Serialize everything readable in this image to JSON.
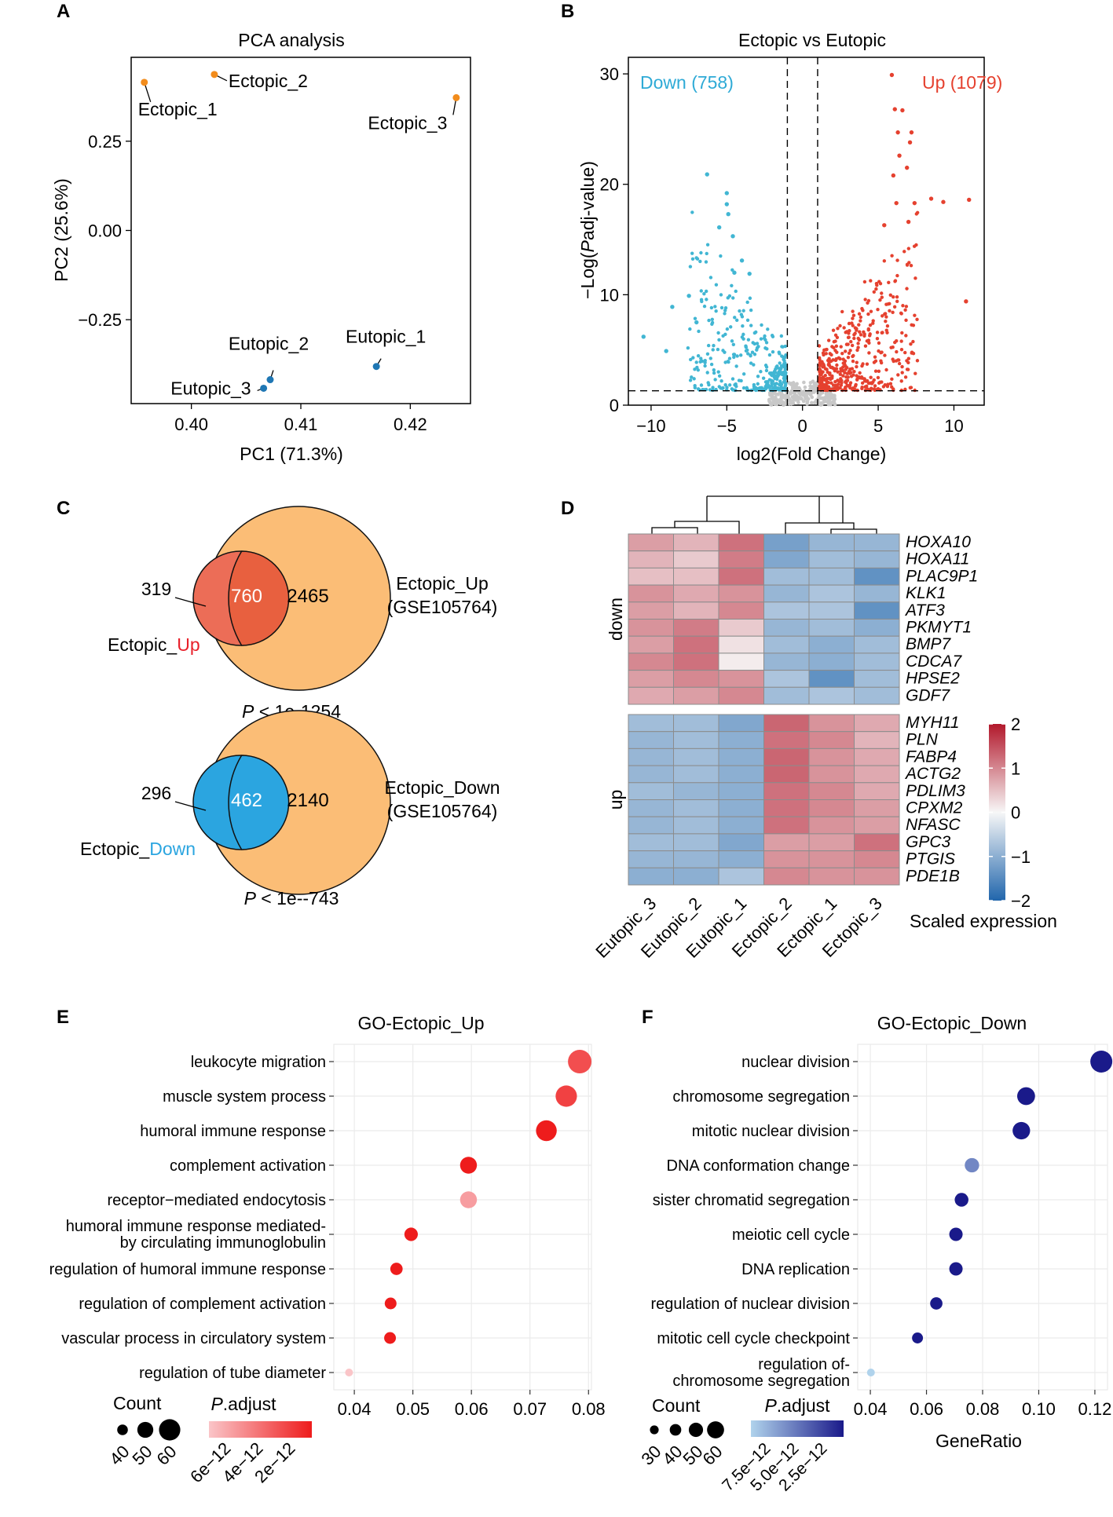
{
  "panels": {
    "A": "A",
    "B": "B",
    "C": "C",
    "D": "D",
    "E": "E",
    "F": "F"
  },
  "chart_data": [
    {
      "panel": "A",
      "type": "scatter",
      "title": "PCA analysis",
      "xlabel": "PC1 (71.3%)",
      "ylabel": "PC2 (25.6%)",
      "xlim": [
        0.3945,
        0.4255
      ],
      "ylim": [
        -0.485,
        0.485
      ],
      "xticks": [
        0.4,
        0.41,
        0.42
      ],
      "xtick_labels": [
        "0.40",
        "0.41",
        "0.42"
      ],
      "yticks": [
        0.25,
        0.0,
        -0.25
      ],
      "ytick_labels": [
        "0.25",
        "0.00",
        "−0.25"
      ],
      "points": [
        {
          "label": "Ectopic_1",
          "group": "Ectopic",
          "x": 0.3957,
          "y": 0.415
        },
        {
          "label": "Ectopic_2",
          "group": "Ectopic",
          "x": 0.4021,
          "y": 0.437
        },
        {
          "label": "Ectopic_3",
          "group": "Ectopic",
          "x": 0.4242,
          "y": 0.372
        },
        {
          "label": "Eutopic_1",
          "group": "Eutopic",
          "x": 0.4169,
          "y": -0.381
        },
        {
          "label": "Eutopic_2",
          "group": "Eutopic",
          "x": 0.4072,
          "y": -0.418
        },
        {
          "label": "Eutopic_3",
          "group": "Eutopic",
          "x": 0.4066,
          "y": -0.442
        }
      ],
      "colors": {
        "Ectopic": "#f28c1c",
        "Eutopic": "#1f77b4"
      }
    },
    {
      "panel": "B",
      "type": "scatter",
      "title": "Ectopic vs Eutopic",
      "xlabel": "log2(Fold Change)",
      "ylabel_prefix": "−Log(",
      "ylabel_italic": "P",
      "ylabel_suffix": "adj-value)",
      "xlim": [
        -11.5,
        12.0
      ],
      "ylim": [
        0,
        31.5
      ],
      "xticks": [
        -10,
        -5,
        0,
        5,
        10
      ],
      "xtick_labels": [
        "−10",
        "−5",
        "0",
        "5",
        "10"
      ],
      "yticks": [
        0,
        10,
        20,
        30
      ],
      "ytick_labels": [
        "0",
        "10",
        "20",
        "30"
      ],
      "fc_cutoffs": [
        -1,
        1
      ],
      "padj_cutoff": 1.3,
      "down_label": "Down (758)",
      "up_label": "Up (1079)",
      "down_count": 758,
      "up_count": 1079,
      "colors": {
        "down": "#41b6d3",
        "up": "#e5412f",
        "ns": "#c8c8c8"
      },
      "highlight_points": {
        "up": [
          [
            5.9,
            29.9
          ],
          [
            6.1,
            26.8
          ],
          [
            6.6,
            26.7
          ],
          [
            6.3,
            24.7
          ],
          [
            7.2,
            24.7
          ],
          [
            7.1,
            23.8
          ],
          [
            6.4,
            22.6
          ],
          [
            6.9,
            21.5
          ],
          [
            6.0,
            20.8
          ],
          [
            8.5,
            18.7
          ],
          [
            11.0,
            18.6
          ],
          [
            9.3,
            18.4
          ],
          [
            7.4,
            18.3
          ],
          [
            10.8,
            9.4
          ],
          [
            6.2,
            18.3
          ],
          [
            7.0,
            16.6
          ],
          [
            5.4,
            16.3
          ]
        ],
        "down": [
          [
            -6.3,
            20.9
          ],
          [
            -5.0,
            19.2
          ],
          [
            -5.0,
            18.2
          ],
          [
            -4.9,
            17.3
          ],
          [
            -5.5,
            16.1
          ],
          [
            -4.6,
            15.3
          ],
          [
            -4.0,
            13.1
          ],
          [
            -4.5,
            12.0
          ],
          [
            -3.5,
            11.9
          ],
          [
            -7.5,
            9.9
          ],
          [
            -10.5,
            6.2
          ],
          [
            -8.6,
            8.9
          ],
          [
            -9.0,
            4.9
          ],
          [
            -7.0,
            7.5
          ]
        ]
      }
    },
    {
      "panel": "C",
      "type": "venn",
      "venns": [
        {
          "left_only": "319",
          "overlap": "760",
          "right_only": "2465",
          "left_label_prefix": "Ectopic_",
          "left_label_suffix": "Up",
          "right_label_line1": "Ectopic_Up",
          "right_label_line2": "(GSE105764)",
          "p_label_italic": "P",
          "p_label_rest": " < 1e-1254",
          "left_color": "#ec6d57",
          "overlap_color": "#e8603f",
          "right_color": "#fbbd76",
          "suffix_color": "#e8202a"
        },
        {
          "left_only": "296",
          "overlap": "462",
          "right_only": "2140",
          "left_label_prefix": "Ectopic_",
          "left_label_suffix": "Down",
          "right_label_line1": "Ectopic_Down",
          "right_label_line2": "(GSE105764)",
          "p_label_italic": "P",
          "p_label_rest": " < 1e--743",
          "left_color": "#2ba5e0",
          "overlap_color": "#2ba5e0",
          "right_color": "#fbbd76",
          "suffix_color": "#2ba5e0"
        }
      ]
    },
    {
      "panel": "D",
      "type": "heatmap",
      "columns": [
        "Eutopic_3",
        "Eutopic_2",
        "Eutopic_1",
        "Ectopic_2",
        "Ectopic_1",
        "Ectopic_3"
      ],
      "row_groups": [
        {
          "label": "down",
          "genes": [
            "HOXA10",
            "HOXA11",
            "PLAC9P1",
            "KLK1",
            "ATF3",
            "PKMYT1",
            "BMP7",
            "CDCA7",
            "HPSE2",
            "GDF7"
          ],
          "values": [
            [
              0.8,
              0.6,
              1.2,
              -1.2,
              -0.9,
              -0.9
            ],
            [
              0.6,
              0.4,
              1.1,
              -1.1,
              -0.8,
              -0.9
            ],
            [
              0.5,
              0.5,
              1.2,
              -0.8,
              -0.8,
              -1.4
            ],
            [
              0.9,
              0.7,
              0.9,
              -0.9,
              -0.7,
              -0.9
            ],
            [
              0.8,
              0.6,
              1.0,
              -0.7,
              -0.7,
              -1.4
            ],
            [
              0.9,
              1.1,
              0.4,
              -0.9,
              -0.8,
              -1.0
            ],
            [
              0.8,
              1.2,
              0.2,
              -0.8,
              -1.0,
              -0.8
            ],
            [
              1.0,
              1.2,
              0.1,
              -0.9,
              -1.0,
              -0.8
            ],
            [
              0.8,
              1.0,
              0.9,
              -0.7,
              -1.4,
              -0.8
            ],
            [
              0.7,
              0.8,
              1.0,
              -0.8,
              -0.7,
              -0.8
            ]
          ]
        },
        {
          "label": "up",
          "genes": [
            "MYH11",
            "PLN",
            "FABP4",
            "ACTG2",
            "PDLIM3",
            "CPXM2",
            "NFASC",
            "GPC3",
            "PTGIS",
            "PDE1B"
          ],
          "values": [
            [
              -0.8,
              -0.8,
              -1.1,
              1.3,
              0.9,
              0.7
            ],
            [
              -0.9,
              -0.8,
              -1.0,
              1.2,
              1.0,
              0.6
            ],
            [
              -0.9,
              -0.8,
              -1.0,
              1.3,
              0.9,
              0.7
            ],
            [
              -0.9,
              -0.8,
              -1.0,
              1.3,
              0.9,
              0.7
            ],
            [
              -0.8,
              -0.9,
              -1.0,
              1.2,
              1.0,
              0.7
            ],
            [
              -0.9,
              -0.8,
              -1.0,
              1.2,
              1.0,
              0.8
            ],
            [
              -0.9,
              -0.8,
              -1.0,
              1.2,
              0.9,
              0.8
            ],
            [
              -0.8,
              -0.8,
              -1.1,
              0.8,
              0.8,
              1.2
            ],
            [
              -0.9,
              -0.9,
              -1.0,
              0.9,
              0.9,
              1.0
            ],
            [
              -1.0,
              -1.0,
              -0.7,
              1.0,
              0.9,
              0.9
            ]
          ]
        }
      ],
      "colorbar": {
        "min": -2,
        "max": 2,
        "ticks": [
          2,
          1,
          0,
          -1,
          -2
        ],
        "tick_labels": [
          "2",
          "1",
          "0",
          "−1",
          "−2"
        ],
        "title": "Scaled expression",
        "low_color": "#2166ac",
        "mid_color": "#f7f7f7",
        "high_color": "#b2182b"
      }
    },
    {
      "panel": "E",
      "type": "dot",
      "title": "GO-Ectopic_Up",
      "xlabel": "",
      "xlim": [
        0.0365,
        0.0805
      ],
      "xticks": [
        0.04,
        0.05,
        0.06,
        0.07,
        0.08
      ],
      "xtick_labels": [
        "0.04",
        "0.05",
        "0.06",
        "0.07",
        "0.08"
      ],
      "terms": [
        {
          "line1": "leukocyte migration",
          "line2": "",
          "x": 0.0785,
          "count": 62,
          "p_adjust": 2e-12
        },
        {
          "line1": "muscle system process",
          "line2": "",
          "x": 0.0762,
          "count": 58,
          "p_adjust": 1.5e-12
        },
        {
          "line1": "humoral immune response",
          "line2": "",
          "x": 0.0728,
          "count": 57,
          "p_adjust": 1e-13
        },
        {
          "line1": "complement activation",
          "line2": "",
          "x": 0.0595,
          "count": 50,
          "p_adjust": 1e-13
        },
        {
          "line1": "receptor−mediated endocytosis",
          "line2": "",
          "x": 0.0595,
          "count": 50,
          "p_adjust": 5e-12
        },
        {
          "line1": "humoral immune response mediated-",
          "line2": "by circulating immunoglobulin",
          "x": 0.0497,
          "count": 44,
          "p_adjust": 1e-13
        },
        {
          "line1": "regulation of humoral immune response",
          "line2": "",
          "x": 0.0472,
          "count": 42,
          "p_adjust": 1e-13
        },
        {
          "line1": "regulation of complement activation",
          "line2": "",
          "x": 0.0462,
          "count": 41,
          "p_adjust": 1e-13
        },
        {
          "line1": "vascular process in circulatory system",
          "line2": "",
          "x": 0.0461,
          "count": 41,
          "p_adjust": 1e-13
        },
        {
          "line1": "regulation of tube diameter",
          "line2": "",
          "x": 0.0391,
          "count": 34,
          "p_adjust": 6.5e-12
        }
      ],
      "legend_count": {
        "title": "Count",
        "values": [
          40,
          50,
          60
        ],
        "labels": [
          "40",
          "50",
          "60"
        ]
      },
      "legend_padj": {
        "title_italic": "P",
        "title_rest": ".adjust",
        "labels": [
          "6e−12",
          "4e−12",
          "2e−12"
        ],
        "low_color": "#fac5c8",
        "high_color": "#ee1c1c"
      }
    },
    {
      "panel": "F",
      "type": "dot",
      "title": "GO-Ectopic_Down",
      "xlabel": "GeneRatio",
      "xlim": [
        0.0355,
        0.1245
      ],
      "xticks": [
        0.04,
        0.06,
        0.08,
        0.1,
        0.12
      ],
      "xtick_labels": [
        "0.04",
        "0.06",
        "0.08",
        "0.10",
        "0.12"
      ],
      "terms": [
        {
          "line1": "nuclear division",
          "line2": "",
          "x": 0.1223,
          "count": 62,
          "p_adjust": 5e-13
        },
        {
          "line1": "chromosome segregation",
          "line2": "",
          "x": 0.0955,
          "count": 50,
          "p_adjust": 5e-13
        },
        {
          "line1": "mitotic nuclear division",
          "line2": "",
          "x": 0.0938,
          "count": 49,
          "p_adjust": 5e-13
        },
        {
          "line1": "DNA conformation change",
          "line2": "",
          "x": 0.0762,
          "count": 40,
          "p_adjust": 5.5e-12
        },
        {
          "line1": "sister chromatid segregation",
          "line2": "",
          "x": 0.0725,
          "count": 38,
          "p_adjust": 5e-13
        },
        {
          "line1": "meiotic cell cycle",
          "line2": "",
          "x": 0.0705,
          "count": 37,
          "p_adjust": 5e-13
        },
        {
          "line1": "DNA replication",
          "line2": "",
          "x": 0.0705,
          "count": 37,
          "p_adjust": 5e-13
        },
        {
          "line1": "regulation of nuclear division",
          "line2": "",
          "x": 0.0635,
          "count": 34,
          "p_adjust": 5e-13
        },
        {
          "line1": "mitotic cell cycle checkpoint",
          "line2": "",
          "x": 0.0568,
          "count": 30,
          "p_adjust": 5e-13
        },
        {
          "line1": "regulation of-",
          "line2": "chromosome segregation",
          "x": 0.0402,
          "count": 21,
          "p_adjust": 9e-12
        }
      ],
      "legend_count": {
        "title": "Count",
        "values": [
          30,
          40,
          50,
          60
        ],
        "labels": [
          "30",
          "40",
          "50",
          "60"
        ]
      },
      "legend_padj": {
        "title_italic": "P",
        "title_rest": ".adjust",
        "labels": [
          "7.5e−12",
          "5.0e−12",
          "2.5e−12"
        ],
        "low_color": "#b0d3ec",
        "high_color": "#1a1a8a"
      }
    }
  ]
}
